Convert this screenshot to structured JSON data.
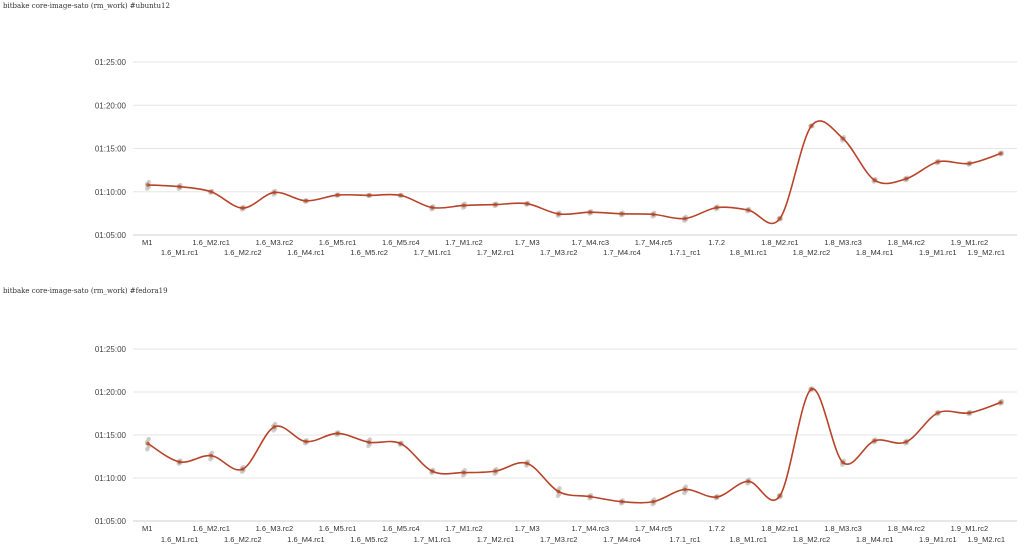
{
  "chart_data": [
    {
      "type": "line",
      "title": "bitbake core-image-sato (rm_work) #ubuntu12",
      "ylabel": "",
      "xlabel": "",
      "yticks": [
        "01:05:00",
        "01:10:00",
        "01:15:00",
        "01:20:00",
        "01:25:00"
      ],
      "ylim_seconds": [
        3900,
        5100
      ],
      "categories": [
        "M1",
        "1.6_M1.rc1",
        "1.6_M2.rc1",
        "1.6_M2.rc2",
        "1.6_M3.rc2",
        "1.6_M4.rc1",
        "1.6_M5.rc1",
        "1.6_M5.rc2",
        "1.6_M5.rc4",
        "1.7_M1.rc1",
        "1.7_M1.rc2",
        "1.7_M2.rc1",
        "1.7_M3",
        "1.7_M3.rc2",
        "1.7_M4.rc3",
        "1.7_M4.rc4",
        "1.7_M4.rc5",
        "1.7.1_rc1",
        "1.7.2",
        "1.8_M1.rc1",
        "1.8_M2.rc1",
        "1.8_M2.rc2",
        "1.8_M3.rc3",
        "1.8_M4.rc1",
        "1.8_M4.rc2",
        "1.9_M1.rc1",
        "1.9_M1.rc2",
        "1.9_M2.rc1"
      ],
      "mean_seconds": [
        4247,
        4235,
        4200,
        4087,
        4195,
        4137,
        4177,
        4175,
        4175,
        4090,
        4105,
        4111,
        4117,
        4046,
        4058,
        4047,
        4043,
        4014,
        4090,
        4073,
        4014,
        4657,
        4569,
        4280,
        4290,
        4407,
        4396,
        4466
      ],
      "spread_seconds": [
        25,
        14,
        6,
        10,
        14,
        6,
        4,
        4,
        3,
        12,
        15,
        9,
        7,
        12,
        9,
        10,
        14,
        15,
        10,
        9,
        8,
        5,
        12,
        9,
        9,
        8,
        7,
        7
      ],
      "grid": true
    },
    {
      "type": "line",
      "title": "bitbake core-image-sato (rm_work) #fedora19",
      "ylabel": "",
      "xlabel": "",
      "yticks": [
        "01:05:00",
        "01:10:00",
        "01:15:00",
        "01:20:00",
        "01:25:00"
      ],
      "ylim_seconds": [
        3900,
        5100
      ],
      "categories": [
        "M1",
        "1.6_M1.rc1",
        "1.6_M2.rc1",
        "1.6_M2.rc2",
        "1.6_M3.rc2",
        "1.6_M4.rc1",
        "1.6_M5.rc1",
        "1.6_M5.rc2",
        "1.6_M5.rc4",
        "1.7_M1.rc1",
        "1.7_M1.rc2",
        "1.7_M2.rc1",
        "1.7_M3",
        "1.7_M3.rc2",
        "1.7_M4.rc3",
        "1.7_M4.rc4",
        "1.7_M4.rc5",
        "1.7.1_rc1",
        "1.7.2",
        "1.8_M1.rc1",
        "1.8_M2.rc1",
        "1.8_M2.rc2",
        "1.8_M3.rc3",
        "1.8_M4.rc1",
        "1.8_M4.rc2",
        "1.9_M1.rc1",
        "1.9_M1.rc2",
        "1.9_M2.rc1"
      ],
      "mean_seconds": [
        4440,
        4312,
        4356,
        4262,
        4557,
        4454,
        4511,
        4449,
        4440,
        4247,
        4238,
        4248,
        4302,
        4105,
        4070,
        4035,
        4035,
        4120,
        4067,
        4177,
        4075,
        4820,
        4308,
        4460,
        4452,
        4654,
        4654,
        4728
      ],
      "spread_seconds": [
        40,
        12,
        25,
        18,
        25,
        12,
        10,
        25,
        8,
        12,
        20,
        18,
        15,
        30,
        12,
        12,
        18,
        25,
        8,
        15,
        10,
        6,
        15,
        10,
        10,
        8,
        8,
        10
      ],
      "grid": true
    }
  ]
}
